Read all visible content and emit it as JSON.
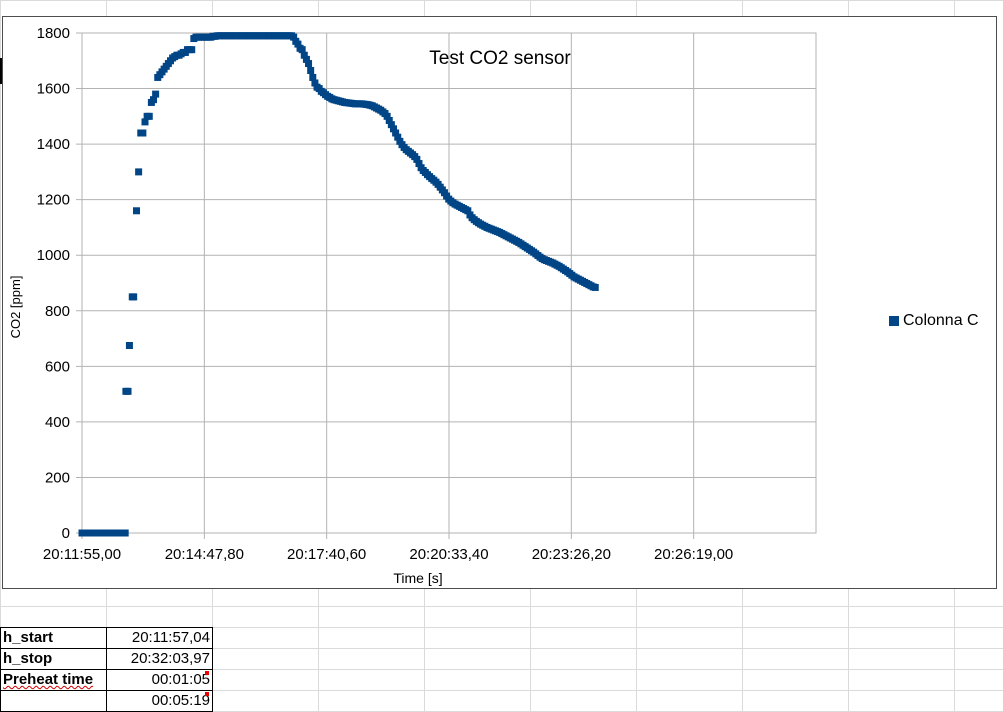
{
  "chart_data": {
    "type": "scatter",
    "title": "Test CO2 sensor",
    "xlabel": "Time [s]",
    "ylabel": "CO2 [ppm]",
    "ylim": [
      0,
      1800
    ],
    "yticks": [
      "0",
      "200",
      "400",
      "600",
      "800",
      "1000",
      "1200",
      "1400",
      "1600",
      "1800"
    ],
    "xlim": [
      "20:11:55,00",
      "20:29:11,80"
    ],
    "xticks": [
      "20:11:55,00",
      "20:14:47,80",
      "20:17:40,60",
      "20:20:33,40",
      "20:23:26,20",
      "20:26:19,00"
    ],
    "grid": true,
    "legend_position": "right",
    "series": [
      {
        "name": "Colonna C",
        "color": "#004586",
        "marker": "square",
        "points": [
          [
            "20:11:55,00",
            0
          ],
          [
            "20:11:57,00",
            0
          ],
          [
            "20:12:00,00",
            0
          ],
          [
            "20:12:03,00",
            0
          ],
          [
            "20:12:06,00",
            0
          ],
          [
            "20:12:09,00",
            0
          ],
          [
            "20:12:12,00",
            0
          ],
          [
            "20:12:15,00",
            0
          ],
          [
            "20:12:18,00",
            0
          ],
          [
            "20:12:21,00",
            0
          ],
          [
            "20:12:24,00",
            0
          ],
          [
            "20:12:27,00",
            0
          ],
          [
            "20:12:30,00",
            0
          ],
          [
            "20:12:33,00",
            0
          ],
          [
            "20:12:36,00",
            0
          ],
          [
            "20:12:39,00",
            0
          ],
          [
            "20:12:42,00",
            0
          ],
          [
            "20:12:45,00",
            0
          ],
          [
            "20:12:48,00",
            0
          ],
          [
            "20:12:51,00",
            0
          ],
          [
            "20:12:54,00",
            0
          ],
          [
            "20:12:56,00",
            0
          ],
          [
            "20:12:57,00",
            510
          ],
          [
            "20:13:00,00",
            510
          ],
          [
            "20:13:02,00",
            675
          ],
          [
            "20:13:06,00",
            850
          ],
          [
            "20:13:08,00",
            850
          ],
          [
            "20:13:12,00",
            1160
          ],
          [
            "20:13:15,00",
            1300
          ],
          [
            "20:13:18,00",
            1440
          ],
          [
            "20:13:21,00",
            1440
          ],
          [
            "20:13:24,00",
            1480
          ],
          [
            "20:13:27,00",
            1500
          ],
          [
            "20:13:30,00",
            1500
          ],
          [
            "20:13:33,00",
            1550
          ],
          [
            "20:13:36,00",
            1560
          ],
          [
            "20:13:39,00",
            1580
          ],
          [
            "20:13:42,00",
            1640
          ],
          [
            "20:13:45,00",
            1650
          ],
          [
            "20:13:48,00",
            1660
          ],
          [
            "20:13:51,00",
            1670
          ],
          [
            "20:13:54,00",
            1680
          ],
          [
            "20:13:57,00",
            1690
          ],
          [
            "20:14:00,00",
            1700
          ],
          [
            "20:14:03,00",
            1710
          ],
          [
            "20:14:06,00",
            1715
          ],
          [
            "20:14:09,00",
            1720
          ],
          [
            "20:14:12,00",
            1720
          ],
          [
            "20:14:15,00",
            1725
          ],
          [
            "20:14:18,00",
            1730
          ],
          [
            "20:14:21,00",
            1730
          ],
          [
            "20:14:24,00",
            1740
          ],
          [
            "20:14:27,00",
            1740
          ],
          [
            "20:14:30,00",
            1740
          ],
          [
            "20:14:33,00",
            1780
          ],
          [
            "20:14:36,00",
            1785
          ],
          [
            "20:14:39,00",
            1785
          ],
          [
            "20:14:42,00",
            1785
          ],
          [
            "20:14:45,00",
            1785
          ],
          [
            "20:14:48,00",
            1785
          ],
          [
            "20:14:51,00",
            1785
          ],
          [
            "20:14:54,00",
            1785
          ],
          [
            "20:14:57,00",
            1785
          ],
          [
            "20:15:00,00",
            1788
          ],
          [
            "20:15:03,00",
            1788
          ],
          [
            "20:15:06,00",
            1790
          ],
          [
            "20:15:09,00",
            1790
          ],
          [
            "20:15:12,00",
            1790
          ],
          [
            "20:15:15,00",
            1790
          ],
          [
            "20:15:18,00",
            1790
          ],
          [
            "20:15:21,00",
            1790
          ],
          [
            "20:15:24,00",
            1790
          ],
          [
            "20:15:27,00",
            1790
          ],
          [
            "20:15:30,00",
            1790
          ],
          [
            "20:15:33,00",
            1790
          ],
          [
            "20:15:36,00",
            1790
          ],
          [
            "20:15:39,00",
            1790
          ],
          [
            "20:15:42,00",
            1790
          ],
          [
            "20:15:45,00",
            1790
          ],
          [
            "20:15:48,00",
            1790
          ],
          [
            "20:15:51,00",
            1790
          ],
          [
            "20:15:54,00",
            1790
          ],
          [
            "20:15:57,00",
            1790
          ],
          [
            "20:16:00,00",
            1790
          ],
          [
            "20:16:03,00",
            1790
          ],
          [
            "20:16:06,00",
            1790
          ],
          [
            "20:16:09,00",
            1790
          ],
          [
            "20:16:12,00",
            1790
          ],
          [
            "20:16:15,00",
            1790
          ],
          [
            "20:16:18,00",
            1790
          ],
          [
            "20:16:21,00",
            1790
          ],
          [
            "20:16:24,00",
            1790
          ],
          [
            "20:16:27,00",
            1790
          ],
          [
            "20:16:30,00",
            1790
          ],
          [
            "20:16:33,00",
            1790
          ],
          [
            "20:16:36,00",
            1790
          ],
          [
            "20:16:39,00",
            1790
          ],
          [
            "20:16:42,00",
            1790
          ],
          [
            "20:16:45,00",
            1790
          ],
          [
            "20:16:48,00",
            1790
          ],
          [
            "20:16:51,00",
            1790
          ],
          [
            "20:16:54,00",
            1785
          ],
          [
            "20:16:57,00",
            1770
          ],
          [
            "20:17:00,00",
            1760
          ],
          [
            "20:17:03,00",
            1745
          ],
          [
            "20:17:06,00",
            1740
          ],
          [
            "20:17:09,00",
            1720
          ],
          [
            "20:17:12,00",
            1705
          ],
          [
            "20:17:15,00",
            1690
          ],
          [
            "20:17:18,00",
            1665
          ],
          [
            "20:17:21,00",
            1640
          ],
          [
            "20:17:24,00",
            1620
          ],
          [
            "20:17:27,00",
            1605
          ],
          [
            "20:17:30,00",
            1600
          ],
          [
            "20:17:33,00",
            1590
          ],
          [
            "20:17:36,00",
            1585
          ],
          [
            "20:17:39,00",
            1578
          ],
          [
            "20:17:42,00",
            1572
          ],
          [
            "20:17:45,00",
            1568
          ],
          [
            "20:17:48,00",
            1563
          ],
          [
            "20:17:51,00",
            1560
          ],
          [
            "20:17:54,00",
            1558
          ],
          [
            "20:17:57,00",
            1556
          ],
          [
            "20:18:00,00",
            1554
          ],
          [
            "20:18:03,00",
            1552
          ],
          [
            "20:18:06,00",
            1550
          ],
          [
            "20:18:09,00",
            1549
          ],
          [
            "20:18:12,00",
            1548
          ],
          [
            "20:18:15,00",
            1547
          ],
          [
            "20:18:18,00",
            1546
          ],
          [
            "20:18:21,00",
            1545
          ],
          [
            "20:18:24,00",
            1545
          ],
          [
            "20:18:27,00",
            1545
          ],
          [
            "20:18:30,00",
            1545
          ],
          [
            "20:18:33,00",
            1544
          ],
          [
            "20:18:36,00",
            1543
          ],
          [
            "20:18:39,00",
            1542
          ],
          [
            "20:18:42,00",
            1540
          ],
          [
            "20:18:45,00",
            1538
          ],
          [
            "20:18:48,00",
            1534
          ],
          [
            "20:18:51,00",
            1530
          ],
          [
            "20:18:54,00",
            1526
          ],
          [
            "20:18:57,00",
            1522
          ],
          [
            "20:19:00,00",
            1516
          ],
          [
            "20:19:03,00",
            1510
          ],
          [
            "20:19:06,00",
            1500
          ],
          [
            "20:19:09,00",
            1485
          ],
          [
            "20:19:12,00",
            1470
          ],
          [
            "20:19:15,00",
            1455
          ],
          [
            "20:19:18,00",
            1440
          ],
          [
            "20:19:21,00",
            1425
          ],
          [
            "20:19:24,00",
            1410
          ],
          [
            "20:19:27,00",
            1398
          ],
          [
            "20:19:30,00",
            1388
          ],
          [
            "20:19:33,00",
            1380
          ],
          [
            "20:19:36,00",
            1374
          ],
          [
            "20:19:39,00",
            1368
          ],
          [
            "20:19:42,00",
            1362
          ],
          [
            "20:19:45,00",
            1355
          ],
          [
            "20:19:48,00",
            1345
          ],
          [
            "20:19:51,00",
            1330
          ],
          [
            "20:19:54,00",
            1315
          ],
          [
            "20:19:57,00",
            1305
          ],
          [
            "20:20:00,00",
            1298
          ],
          [
            "20:20:03,00",
            1290
          ],
          [
            "20:20:06,00",
            1283
          ],
          [
            "20:20:09,00",
            1276
          ],
          [
            "20:20:12,00",
            1270
          ],
          [
            "20:20:15,00",
            1263
          ],
          [
            "20:20:18,00",
            1255
          ],
          [
            "20:20:21,00",
            1245
          ],
          [
            "20:20:24,00",
            1235
          ],
          [
            "20:20:27,00",
            1225
          ],
          [
            "20:20:30,00",
            1213
          ],
          [
            "20:20:33,00",
            1202
          ],
          [
            "20:20:36,00",
            1195
          ],
          [
            "20:20:39,00",
            1189
          ],
          [
            "20:20:42,00",
            1184
          ],
          [
            "20:20:45,00",
            1180
          ],
          [
            "20:20:48,00",
            1176
          ],
          [
            "20:20:51,00",
            1172
          ],
          [
            "20:20:54,00",
            1168
          ],
          [
            "20:20:57,00",
            1164
          ],
          [
            "20:21:00,00",
            1160
          ],
          [
            "20:21:03,00",
            1145
          ],
          [
            "20:21:06,00",
            1135
          ],
          [
            "20:21:09,00",
            1128
          ],
          [
            "20:21:12,00",
            1122
          ],
          [
            "20:21:15,00",
            1117
          ],
          [
            "20:21:18,00",
            1112
          ],
          [
            "20:21:21,00",
            1108
          ],
          [
            "20:21:24,00",
            1104
          ],
          [
            "20:21:27,00",
            1100
          ],
          [
            "20:21:30,00",
            1097
          ],
          [
            "20:21:33,00",
            1094
          ],
          [
            "20:21:36,00",
            1091
          ],
          [
            "20:21:39,00",
            1088
          ],
          [
            "20:21:42,00",
            1085
          ],
          [
            "20:21:45,00",
            1082
          ],
          [
            "20:21:48,00",
            1078
          ],
          [
            "20:21:51,00",
            1074
          ],
          [
            "20:21:54,00",
            1070
          ],
          [
            "20:21:57,00",
            1066
          ],
          [
            "20:22:00,00",
            1062
          ],
          [
            "20:22:03,00",
            1058
          ],
          [
            "20:22:06,00",
            1054
          ],
          [
            "20:22:09,00",
            1050
          ],
          [
            "20:22:12,00",
            1046
          ],
          [
            "20:22:15,00",
            1041
          ],
          [
            "20:22:18,00",
            1036
          ],
          [
            "20:22:21,00",
            1031
          ],
          [
            "20:22:24,00",
            1026
          ],
          [
            "20:22:27,00",
            1021
          ],
          [
            "20:22:30,00",
            1016
          ],
          [
            "20:22:33,00",
            1011
          ],
          [
            "20:22:36,00",
            1005
          ],
          [
            "20:22:39,00",
            999
          ],
          [
            "20:22:42,00",
            993
          ],
          [
            "20:22:45,00",
            988
          ],
          [
            "20:22:48,00",
            984
          ],
          [
            "20:22:51,00",
            981
          ],
          [
            "20:22:54,00",
            978
          ],
          [
            "20:22:57,00",
            975
          ],
          [
            "20:23:00,00",
            972
          ],
          [
            "20:23:03,00",
            968
          ],
          [
            "20:23:06,00",
            964
          ],
          [
            "20:23:09,00",
            960
          ],
          [
            "20:23:12,00",
            955
          ],
          [
            "20:23:15,00",
            950
          ],
          [
            "20:23:18,00",
            945
          ],
          [
            "20:23:21,00",
            940
          ],
          [
            "20:23:24,00",
            934
          ],
          [
            "20:23:27,00",
            928
          ],
          [
            "20:23:30,00",
            922
          ],
          [
            "20:23:33,00",
            918
          ],
          [
            "20:23:36,00",
            914
          ],
          [
            "20:23:39,00",
            910
          ],
          [
            "20:23:42,00",
            906
          ],
          [
            "20:23:45,00",
            902
          ],
          [
            "20:23:48,00",
            898
          ],
          [
            "20:23:51,00",
            894
          ],
          [
            "20:23:54,00",
            890
          ],
          [
            "20:23:57,00",
            886
          ],
          [
            "20:24:00,00",
            884
          ]
        ]
      }
    ]
  },
  "table": {
    "rows": [
      {
        "label": "h_start",
        "value": "20:11:57,04"
      },
      {
        "label": "h_stop",
        "value": "20:32:03,97"
      },
      {
        "label": "Preheat time",
        "value": "00:01:05"
      },
      {
        "label": "",
        "value": "00:05:19"
      }
    ]
  }
}
